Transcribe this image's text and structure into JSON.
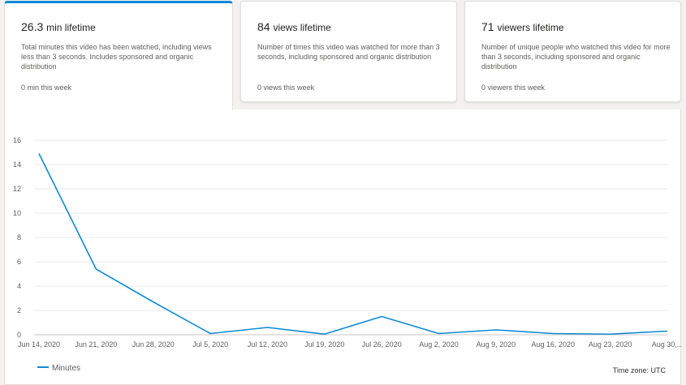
{
  "metrics": [
    {
      "value": "26.3",
      "unit": "min lifetime",
      "description": "Total minutes this video has been watched, including views less than 3 seconds. Includes sponsored and organic distribution",
      "week": "0 min this week"
    },
    {
      "value": "84",
      "unit": "views lifetime",
      "description": "Number of times this video was watched for more than 3 seconds, including sponsored and organic distribution",
      "week": "0 views this week"
    },
    {
      "value": "71",
      "unit": "viewers lifetime",
      "description": "Number of unique people who watched this video for more than 3 seconds, including sponsored and organic distribution",
      "week": "0 viewers this week"
    }
  ],
  "chart_data": {
    "type": "line",
    "x": [
      "Jun 14, 2020",
      "Jun 21, 2020",
      "Jun 28, 2020",
      "Jul 5, 2020",
      "Jul 12, 2020",
      "Jul 19, 2020",
      "Jul 26, 2020",
      "Aug 2, 2020",
      "Aug 9, 2020",
      "Aug 16, 2020",
      "Aug 23, 2020",
      "Aug 30,..."
    ],
    "series": [
      {
        "name": "Minutes",
        "values": [
          14.9,
          5.4,
          2.7,
          0.1,
          0.6,
          0.05,
          1.5,
          0.1,
          0.4,
          0.1,
          0.05,
          0.3
        ],
        "color": "#0f8ad6"
      }
    ],
    "yticks": [
      0,
      2,
      4,
      6,
      8,
      10,
      12,
      14,
      16
    ],
    "ylim": [
      0,
      16
    ],
    "grid": true,
    "legend_position": "bottom-left"
  },
  "timezone_label": "Time zone: UTC"
}
